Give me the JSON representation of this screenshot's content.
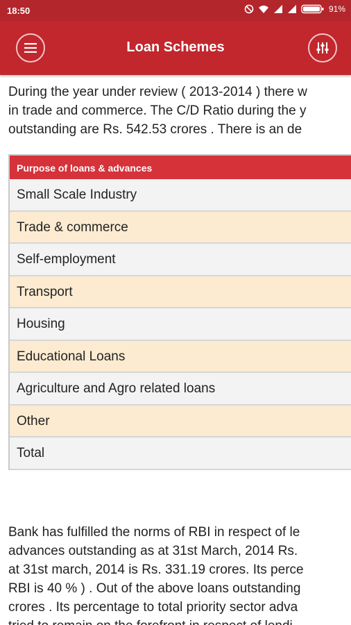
{
  "status_bar": {
    "time": "18:50",
    "battery": "91%",
    "icons": [
      "do-not-disturb-icon",
      "wifi-icon",
      "signal-icon",
      "signal-icon",
      "battery-icon"
    ]
  },
  "app_bar": {
    "title": "Loan Schemes",
    "menu_icon": "menu-icon",
    "filter_icon": "filter-icon"
  },
  "intro_paragraph": {
    "lines": [
      "During the year under review ( 2013-2014 ) there w",
      "in trade and commerce. The C/D Ratio during the y",
      "outstanding are Rs. 542.53 crores . There is an de"
    ]
  },
  "table": {
    "header": "Purpose of loans & advances",
    "rows": [
      "Small Scale Industry",
      "Trade & commerce",
      "Self-employment",
      "Transport",
      "Housing",
      "Educational Loans",
      "Agriculture and Agro related loans",
      "Other",
      "Total"
    ]
  },
  "second_paragraph": {
    "lines": [
      "Bank has fulfilled the norms of RBI in respect of le",
      "advances outstanding as at 31st March, 2014 Rs.",
      "at 31st march, 2014 is Rs. 331.19 crores. Its perce",
      "RBI is 40 % ) . Out of the above loans outstanding",
      "crores . Its percentage to total priority sector adva",
      "tried to remain on the forefront in respect of lendi"
    ]
  },
  "colors": {
    "status_bar": "#b3262c",
    "app_bar": "#c1272d",
    "table_header": "#d5323a",
    "row_odd": "#f3f3f3",
    "row_even": "#fcebd1"
  }
}
